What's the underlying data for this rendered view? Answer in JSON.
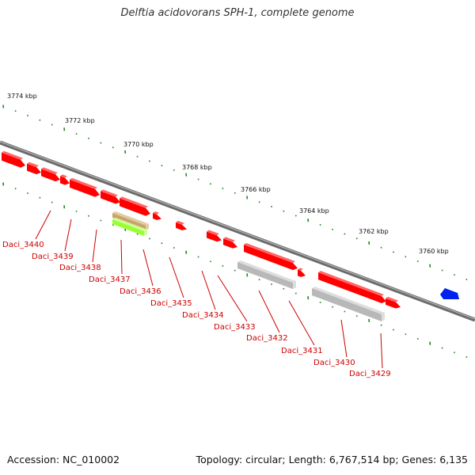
{
  "title": "Delftia acidovorans SPH-1, complete genome",
  "footer": {
    "accession": "Accession: NC_010002",
    "summary": "Topology: circular; Length: 6,767,514 bp; Genes: 6,135"
  },
  "colors": {
    "forward_gene": "#ff0000",
    "reverse_gene": "#ff0000",
    "pseudo_gene": "#b0b0b0",
    "rna_highlight": "#99ff33",
    "rna_other": "#c8a060",
    "other_feature": "#0022ee",
    "backbone": "#777777",
    "tick": "#228822",
    "label": "#cc0000"
  },
  "scale_labels": [
    {
      "text": "3774 kbp",
      "pos": 3774
    },
    {
      "text": "3772 kbp",
      "pos": 3772
    },
    {
      "text": "3770 kbp",
      "pos": 3770
    },
    {
      "text": "3768 kbp",
      "pos": 3768
    },
    {
      "text": "3766 kbp",
      "pos": 3766
    },
    {
      "text": "3764 kbp",
      "pos": 3764
    },
    {
      "text": "3762 kbp",
      "pos": 3762
    },
    {
      "text": "3760 kbp",
      "pos": 3760
    }
  ],
  "gene_labels": [
    "Daci_3440",
    "Daci_3439",
    "Daci_3438",
    "Daci_3437",
    "Daci_3436",
    "Daci_3435",
    "Daci_3434",
    "Daci_3433",
    "Daci_3432",
    "Daci_3431",
    "Daci_3430",
    "Daci_3429"
  ]
}
